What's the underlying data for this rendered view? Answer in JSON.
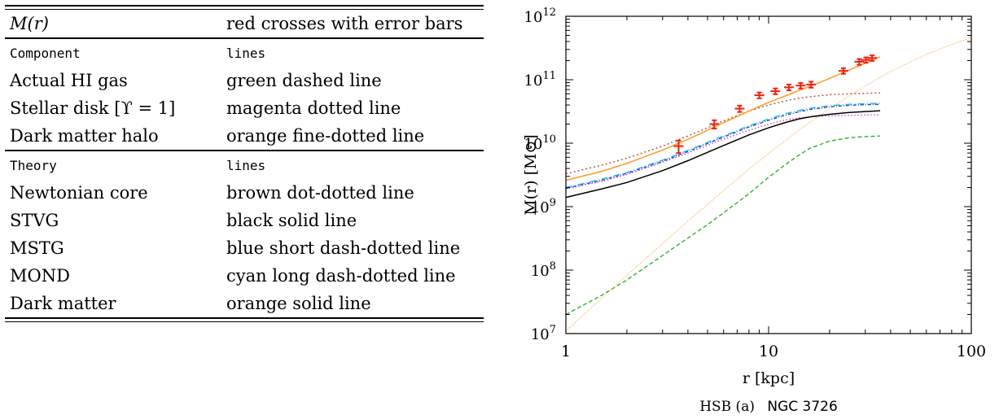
{
  "table": {
    "header": {
      "c1": "M(r)",
      "c2": "red crosses with error bars"
    },
    "component_header": {
      "c1": "Component",
      "c2": "lines"
    },
    "components": [
      {
        "c1": "Actual HI gas",
        "c2": "green dashed line"
      },
      {
        "c1": "Stellar disk [ϒ = 1]",
        "c2": "magenta dotted line"
      },
      {
        "c1": "Dark matter halo",
        "c2": "orange fine-dotted line"
      }
    ],
    "theory_header": {
      "c1": "Theory",
      "c2": "lines"
    },
    "theories": [
      {
        "c1": "Newtonian core",
        "c2": "brown dot-dotted line"
      },
      {
        "c1": "STVG",
        "c2": "black solid line"
      },
      {
        "c1": "MSTG",
        "c2": "blue short dash-dotted line"
      },
      {
        "c1": "MOND",
        "c2": "cyan long dash-dotted line"
      },
      {
        "c1": "Dark matter",
        "c2": "orange solid line"
      }
    ]
  },
  "chart_data": {
    "type": "line",
    "xscale": "log",
    "yscale": "log",
    "xlim": [
      1,
      100
    ],
    "ylim": [
      10000000,
      1000000000000
    ],
    "xlabel": "r [kpc]",
    "ylabel": "M(r) [M⊙]",
    "caption_prefix": "HSB (a)",
    "caption_name": "NGC 3726",
    "x_ticks": [
      {
        "value": 1,
        "label": "1"
      },
      {
        "value": 10,
        "label": "10"
      },
      {
        "value": 100,
        "label": "100"
      }
    ],
    "y_ticks": [
      {
        "exp": 7,
        "base": "10",
        "sup": "7"
      },
      {
        "exp": 8,
        "base": "10",
        "sup": "8"
      },
      {
        "exp": 9,
        "base": "10",
        "sup": "9"
      },
      {
        "exp": 10,
        "base": "10",
        "sup": "10"
      },
      {
        "exp": 11,
        "base": "10",
        "sup": "11"
      },
      {
        "exp": 12,
        "base": "10",
        "sup": "12"
      }
    ],
    "observed": [
      {
        "r": 3.6,
        "m": 9000000000.0,
        "err": 2000000000.0
      },
      {
        "r": 5.4,
        "m": 20000000000.0,
        "err": 3000000000.0
      },
      {
        "r": 7.2,
        "m": 35000000000.0,
        "err": 4000000000.0
      },
      {
        "r": 9.0,
        "m": 57000000000.0,
        "err": 6000000000.0
      },
      {
        "r": 10.8,
        "m": 66000000000.0,
        "err": 7000000000.0
      },
      {
        "r": 12.6,
        "m": 76000000000.0,
        "err": 8000000000.0
      },
      {
        "r": 14.4,
        "m": 81000000000.0,
        "err": 8000000000.0
      },
      {
        "r": 16.2,
        "m": 84000000000.0,
        "err": 9000000000.0
      },
      {
        "r": 23.4,
        "m": 138000000000.0,
        "err": 14000000000.0
      },
      {
        "r": 28.0,
        "m": 192000000000.0,
        "err": 20000000000.0
      },
      {
        "r": 30.2,
        "m": 205000000000.0,
        "err": 20000000000.0
      },
      {
        "r": 32.4,
        "m": 220000000000.0,
        "err": 22000000000.0
      }
    ],
    "series": [
      {
        "key": "hi_gas",
        "color": "#22aa22",
        "dash": "5,3",
        "width": 1.3,
        "x": [
          1,
          1.5,
          2,
          3,
          4,
          5,
          6,
          8,
          10,
          12,
          14,
          16,
          20,
          25,
          30,
          35.5
        ],
        "y": [
          20000000.0,
          40000000.0,
          70000000.0,
          170000000.0,
          320000000.0,
          520000000.0,
          800000000.0,
          1600000000.0,
          2900000000.0,
          4500000000.0,
          6400000000.0,
          8300000000.0,
          10800000000.0,
          12200000000.0,
          12700000000.0,
          13000000000.0
        ]
      },
      {
        "key": "stellar_disk",
        "color": "#cc33cc",
        "dash": "1.5,2.5",
        "width": 1.3,
        "x": [
          1,
          1.5,
          2,
          3,
          4,
          5,
          6,
          8,
          10,
          12,
          14,
          16,
          20,
          25,
          30,
          35.5
        ],
        "y": [
          1900000000.0,
          2500000000.0,
          3200000000.0,
          5000000000.0,
          7000000000.0,
          9300000000.0,
          11600000000.0,
          16000000000.0,
          20000000000.0,
          23000000000.0,
          25000000000.0,
          26000000000.0,
          27000000000.0,
          27500000000.0,
          27800000000.0,
          28000000000.0
        ]
      },
      {
        "key": "dark_halo",
        "color": "#ff9922",
        "dash": "1,2",
        "width": 1.1,
        "x": [
          1,
          1.5,
          2,
          3,
          4,
          6,
          8,
          10,
          15,
          20,
          30,
          40,
          60,
          80,
          100
        ],
        "y": [
          11000000.0,
          36000000.0,
          83000000.0,
          260000000.0,
          590000000.0,
          1800000000.0,
          3900000000.0,
          6900000000.0,
          18500000000.0,
          35000000000.0,
          80000000000.0,
          135000000000.0,
          250000000000.0,
          360000000000.0,
          460000000000.0
        ]
      },
      {
        "key": "newtonian_core",
        "color": "#aa4422",
        "dash": "2,3",
        "width": 1.3,
        "x": [
          1,
          1.5,
          2,
          3,
          4,
          5,
          6,
          8,
          10,
          12,
          14,
          16,
          20,
          25,
          30,
          35.5
        ],
        "y": [
          3300000000.0,
          4500000000.0,
          5800000000.0,
          9000000000.0,
          13000000000.0,
          17500000000.0,
          22500000000.0,
          32000000000.0,
          40000000000.0,
          46000000000.0,
          51000000000.0,
          54000000000.0,
          58000000000.0,
          60000000000.0,
          61000000000.0,
          62000000000.0
        ]
      },
      {
        "key": "stvg",
        "color": "#000000",
        "dash": "",
        "width": 1.5,
        "x": [
          1,
          1.5,
          2,
          3,
          4,
          5,
          6,
          8,
          10,
          12,
          14,
          16,
          20,
          25,
          30,
          35.5
        ],
        "y": [
          1400000000.0,
          1900000000.0,
          2400000000.0,
          3700000000.0,
          5300000000.0,
          7200000000.0,
          9200000000.0,
          13500000000.0,
          17500000000.0,
          21000000000.0,
          24000000000.0,
          26000000000.0,
          28500000000.0,
          30500000000.0,
          31500000000.0,
          32500000000.0
        ]
      },
      {
        "key": "mstg",
        "color": "#2244cc",
        "dash": "4,2,1,2",
        "width": 1.4,
        "x": [
          1,
          1.5,
          2,
          3,
          4,
          5,
          6,
          8,
          10,
          12,
          14,
          16,
          20,
          25,
          30,
          35.5
        ],
        "y": [
          1950000000.0,
          2600000000.0,
          3350000000.0,
          5200000000.0,
          7400000000.0,
          9900000000.0,
          12500000000.0,
          18000000000.0,
          23000000000.0,
          27500000000.0,
          31000000000.0,
          34000000000.0,
          37500000000.0,
          39500000000.0,
          40500000000.0,
          41000000000.0
        ]
      },
      {
        "key": "mond",
        "color": "#22bbdd",
        "dash": "8,3,1,3",
        "width": 1.4,
        "x": [
          1,
          1.5,
          2,
          3,
          4,
          5,
          6,
          8,
          10,
          12,
          14,
          16,
          20,
          25,
          30,
          35.5
        ],
        "y": [
          2000000000.0,
          2700000000.0,
          3450000000.0,
          5400000000.0,
          7700000000.0,
          10300000000.0,
          13000000000.0,
          18800000000.0,
          24000000000.0,
          29000000000.0,
          32500000000.0,
          35500000000.0,
          39000000000.0,
          41000000000.0,
          42000000000.0,
          42500000000.0
        ]
      },
      {
        "key": "dark_matter",
        "color": "#ff9922",
        "dash": "",
        "width": 1.5,
        "x": [
          1,
          1.5,
          2,
          3,
          4,
          5,
          6,
          8,
          10,
          12,
          14,
          16,
          20,
          25,
          30,
          35.5
        ],
        "y": [
          2600000000.0,
          3600000000.0,
          4800000000.0,
          7800000000.0,
          11500000000.0,
          16000000000.0,
          21000000000.0,
          32000000000.0,
          44000000000.0,
          55000000000.0,
          67000000000.0,
          79000000000.0,
          105000000000.0,
          142000000000.0,
          182000000000.0,
          230000000000.0
        ]
      }
    ]
  }
}
